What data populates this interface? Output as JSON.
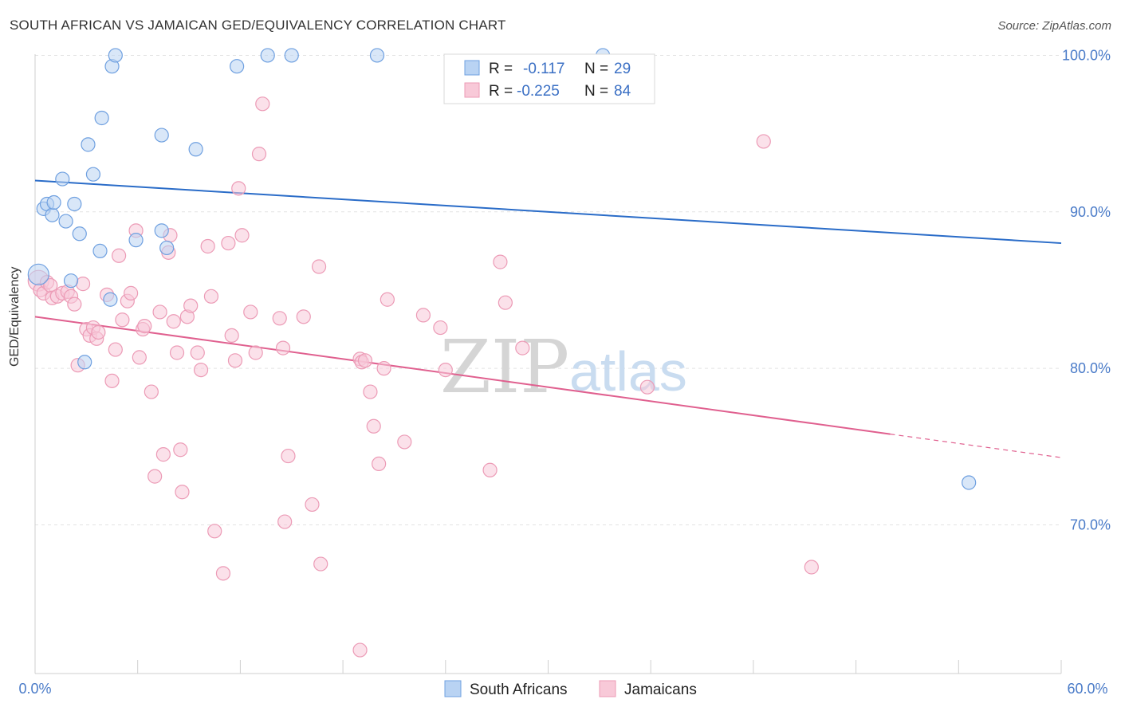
{
  "header": {
    "title": "SOUTH AFRICAN VS JAMAICAN GED/EQUIVALENCY CORRELATION CHART",
    "source": "Source: ZipAtlas.com"
  },
  "watermark": {
    "zip": "ZIP",
    "atlas": "atlas"
  },
  "chart_data": {
    "type": "scatter",
    "title": "SOUTH AFRICAN VS JAMAICAN GED/EQUIVALENCY CORRELATION CHART",
    "xlabel": "",
    "ylabel": "GED/Equivalency",
    "xlim": [
      0,
      60
    ],
    "ylim": [
      60.5,
      101.5
    ],
    "x_tick_labels": {
      "left": "0.0%",
      "right": "60.0%"
    },
    "y_ticks": [
      {
        "value": 100,
        "label": "100.0%"
      },
      {
        "value": 90,
        "label": "90.0%"
      },
      {
        "value": 80,
        "label": "80.0%"
      },
      {
        "value": 70,
        "label": "70.0%"
      }
    ],
    "grid": true,
    "legend_position": "top-center",
    "series": [
      {
        "name": "South Africans",
        "color": "#6fa0e0",
        "fill": "#b9d3f3",
        "line_color": "#2a6cc8",
        "R": "-0.117",
        "N": "29",
        "r_label": "R =",
        "n_label": "N =",
        "trend": {
          "x0": 0,
          "y0": 92.0,
          "x1": 60,
          "y1": 88.0
        },
        "points": [
          [
            0.2,
            86.0
          ],
          [
            0.5,
            90.2
          ],
          [
            0.7,
            90.5
          ],
          [
            1.0,
            89.8
          ],
          [
            1.1,
            90.6
          ],
          [
            1.6,
            92.1
          ],
          [
            1.8,
            89.4
          ],
          [
            2.1,
            85.6
          ],
          [
            2.3,
            90.5
          ],
          [
            2.6,
            88.6
          ],
          [
            2.9,
            80.4
          ],
          [
            3.1,
            94.3
          ],
          [
            3.4,
            92.4
          ],
          [
            3.8,
            87.5
          ],
          [
            3.9,
            96.0
          ],
          [
            4.4,
            84.4
          ],
          [
            4.5,
            99.3
          ],
          [
            4.7,
            100.0
          ],
          [
            5.9,
            88.2
          ],
          [
            7.4,
            94.9
          ],
          [
            7.4,
            88.8
          ],
          [
            7.7,
            87.7
          ],
          [
            9.4,
            94.0
          ],
          [
            11.8,
            99.3
          ],
          [
            13.6,
            100.0
          ],
          [
            15.0,
            100.0
          ],
          [
            20.0,
            100.0
          ],
          [
            33.2,
            100.0
          ],
          [
            54.6,
            72.7
          ]
        ]
      },
      {
        "name": "Jamaicans",
        "color": "#ec9bb6",
        "fill": "#f8c9d8",
        "line_color": "#e0608f",
        "R": "-0.225",
        "N": "84",
        "r_label": "R =",
        "n_label": "N =",
        "trend": {
          "x0": 0,
          "y0": 83.3,
          "x1": 50,
          "y1": 75.8,
          "dash_x1": 60,
          "dash_y1": 74.3
        },
        "points": [
          [
            0.2,
            85.6
          ],
          [
            0.3,
            85.0
          ],
          [
            0.5,
            84.8
          ],
          [
            0.7,
            85.5
          ],
          [
            0.9,
            85.3
          ],
          [
            1.0,
            84.5
          ],
          [
            1.3,
            84.6
          ],
          [
            1.6,
            84.8
          ],
          [
            1.9,
            84.9
          ],
          [
            2.1,
            84.6
          ],
          [
            2.3,
            84.1
          ],
          [
            2.5,
            80.2
          ],
          [
            2.8,
            85.4
          ],
          [
            3.0,
            82.5
          ],
          [
            3.2,
            82.1
          ],
          [
            3.4,
            82.6
          ],
          [
            3.6,
            81.9
          ],
          [
            3.7,
            82.3
          ],
          [
            4.2,
            84.7
          ],
          [
            4.5,
            79.2
          ],
          [
            4.7,
            81.2
          ],
          [
            4.9,
            87.2
          ],
          [
            5.1,
            83.1
          ],
          [
            5.4,
            84.3
          ],
          [
            5.6,
            84.8
          ],
          [
            5.9,
            88.8
          ],
          [
            6.1,
            80.7
          ],
          [
            6.3,
            82.5
          ],
          [
            6.4,
            82.7
          ],
          [
            6.8,
            78.5
          ],
          [
            7.0,
            73.1
          ],
          [
            7.3,
            83.6
          ],
          [
            7.5,
            74.5
          ],
          [
            7.8,
            87.4
          ],
          [
            7.9,
            88.5
          ],
          [
            8.1,
            83.0
          ],
          [
            8.3,
            81.0
          ],
          [
            8.5,
            74.8
          ],
          [
            8.6,
            72.1
          ],
          [
            8.9,
            83.3
          ],
          [
            9.1,
            84.0
          ],
          [
            9.5,
            81.0
          ],
          [
            9.7,
            79.9
          ],
          [
            10.1,
            87.8
          ],
          [
            10.3,
            84.6
          ],
          [
            10.5,
            69.6
          ],
          [
            11.0,
            66.9
          ],
          [
            11.3,
            88.0
          ],
          [
            11.5,
            82.1
          ],
          [
            11.7,
            80.5
          ],
          [
            11.9,
            91.5
          ],
          [
            12.1,
            88.5
          ],
          [
            12.6,
            83.6
          ],
          [
            12.9,
            81.0
          ],
          [
            13.1,
            93.7
          ],
          [
            13.3,
            96.9
          ],
          [
            14.3,
            83.2
          ],
          [
            14.5,
            81.3
          ],
          [
            14.6,
            70.2
          ],
          [
            14.8,
            74.4
          ],
          [
            15.7,
            83.3
          ],
          [
            16.2,
            71.3
          ],
          [
            16.6,
            86.5
          ],
          [
            16.7,
            67.5
          ],
          [
            19.0,
            80.6
          ],
          [
            19.1,
            80.4
          ],
          [
            19.0,
            62.0
          ],
          [
            19.3,
            80.5
          ],
          [
            19.6,
            78.5
          ],
          [
            19.8,
            76.3
          ],
          [
            20.1,
            73.9
          ],
          [
            20.4,
            80.0
          ],
          [
            20.6,
            84.4
          ],
          [
            21.6,
            75.3
          ],
          [
            22.7,
            83.4
          ],
          [
            23.7,
            82.6
          ],
          [
            24.0,
            79.9
          ],
          [
            26.6,
            73.5
          ],
          [
            27.2,
            86.8
          ],
          [
            27.5,
            84.2
          ],
          [
            28.5,
            81.3
          ],
          [
            35.8,
            78.8
          ],
          [
            42.6,
            94.5
          ],
          [
            45.4,
            67.3
          ]
        ]
      }
    ]
  }
}
